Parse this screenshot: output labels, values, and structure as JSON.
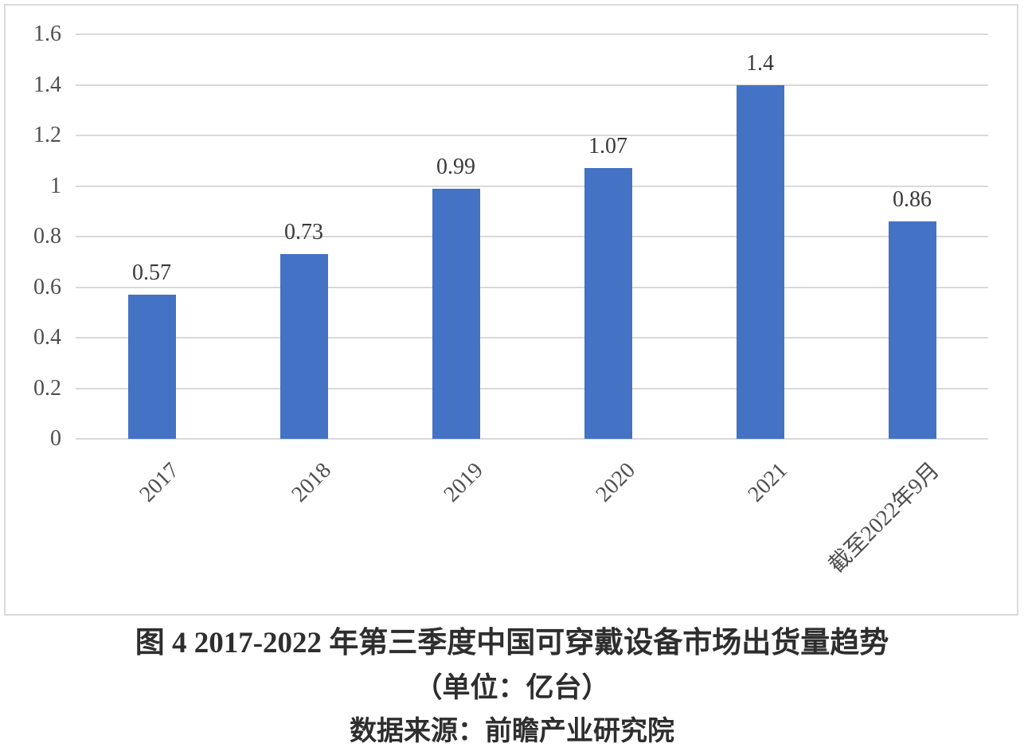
{
  "chart_data": {
    "type": "bar",
    "categories": [
      "2017",
      "2018",
      "2019",
      "2020",
      "2021",
      "截至2022年9月"
    ],
    "values": [
      0.57,
      0.73,
      0.99,
      1.07,
      1.4,
      0.86
    ],
    "data_labels": [
      "0.57",
      "0.73",
      "0.99",
      "1.07",
      "1.4",
      "0.86"
    ],
    "y_ticks": [
      "0",
      "0.2",
      "0.4",
      "0.6",
      "0.8",
      "1",
      "1.2",
      "1.4",
      "1.6"
    ],
    "y_tick_values": [
      0,
      0.2,
      0.4,
      0.6,
      0.8,
      1,
      1.2,
      1.4,
      1.6
    ],
    "ylim": [
      0,
      1.6
    ],
    "grid": true,
    "legend_position": "none",
    "title": "",
    "xlabel": "",
    "ylabel": "",
    "bar_color": "#4472c4",
    "gridline_color": "#d9d9d9",
    "panel_border_color": "#d9d9d9",
    "axis_label_color": "#4f4f4f",
    "data_label_color": "#3a3a3a"
  },
  "caption": {
    "title": "图 4 2017-2022 年第三季度中国可穿戴设备市场出货量趋势",
    "unit": "（单位：亿台）",
    "source": "数据来源：前瞻产业研究院"
  }
}
